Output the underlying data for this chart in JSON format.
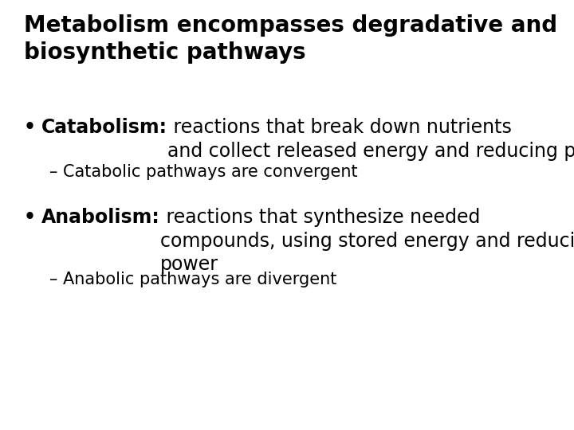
{
  "background_color": "#ffffff",
  "title_line1": "Metabolism encompasses degradative and",
  "title_line2": "biosynthetic pathways",
  "title_fontsize": 20,
  "body_fontsize": 17,
  "sub_fontsize": 15,
  "text_color": "#000000",
  "font_family": "DejaVu Sans",
  "bullet1_bold": "Catabolism:",
  "bullet1_rest": " reactions that break down nutrients\nand collect released energy and reducing power",
  "bullet1_sub": "– Catabolic pathways are convergent",
  "bullet2_bold": "Anabolism:",
  "bullet2_rest": " reactions that synthesize needed\ncompounds, using stored energy and reducing\npower",
  "bullet2_sub": "– Anabolic pathways are divergent"
}
